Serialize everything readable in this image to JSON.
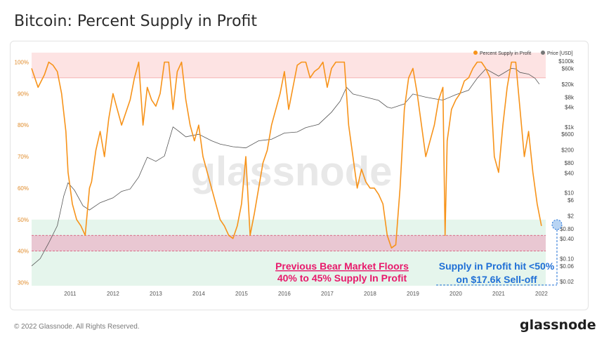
{
  "header": {
    "title": "Bitcoin: Percent Supply in Profit"
  },
  "footer": {
    "copyright": "© 2022 Glassnode. All Rights Reserved.",
    "brand": "glassnode"
  },
  "watermark": "glassnode",
  "annotations": {
    "bear_title": "Previous Bear Market Floors",
    "bear_sub": "40% to 45% Supply In Profit",
    "selloff_title": "Supply in Profit hit <50%",
    "selloff_sub": "on $17.6k Sell-off"
  },
  "colors": {
    "profit": "#f7931a",
    "price": "#555555",
    "annotation_pink": "#e8196b",
    "annotation_blue": "#1f6fd6"
  },
  "chart_data": {
    "type": "line",
    "legend": [
      "Percent Supply in Profit",
      "Price [USD]"
    ],
    "legend_position": "top-right",
    "x_ticks": [
      "2011",
      "2012",
      "2013",
      "2014",
      "2015",
      "2016",
      "2017",
      "2018",
      "2019",
      "2020",
      "2021",
      "2022"
    ],
    "xlim": [
      2010.6,
      2022.6
    ],
    "y_left": {
      "ticks": [
        "30%",
        "40%",
        "50%",
        "60%",
        "70%",
        "80%",
        "90%",
        "100%"
      ],
      "values": [
        30,
        40,
        50,
        60,
        70,
        80,
        90,
        100
      ],
      "ylim": [
        29,
        103
      ]
    },
    "y_right": {
      "scale": "log",
      "ticks": [
        "$100k",
        "$60k",
        "$20k",
        "$8k",
        "$4k",
        "$1k",
        "$600",
        "$200",
        "$80",
        "$40",
        "$10",
        "$6",
        "$2",
        "$0.80",
        "$0.40",
        "$0.10",
        "$0.06",
        "$0.02"
      ],
      "values": [
        100000,
        60000,
        20000,
        8000,
        4000,
        1000,
        600,
        200,
        80,
        40,
        10,
        6,
        2,
        0.8,
        0.4,
        0.1,
        0.06,
        0.02
      ],
      "ylim": [
        0.015,
        180000
      ]
    },
    "zones": [
      {
        "from": 95,
        "to": 103,
        "color": "#fde3e3"
      },
      {
        "from": 29,
        "to": 50,
        "color": "#e5f5ec"
      },
      {
        "from": 40,
        "to": 45,
        "color": "#e9c7d2"
      }
    ],
    "series": [
      {
        "name": "Percent Supply in Profit",
        "axis": "left",
        "x": [
          2010.6,
          2010.75,
          2010.9,
          2011.0,
          2011.1,
          2011.2,
          2011.3,
          2011.4,
          2011.45,
          2011.55,
          2011.65,
          2011.75,
          2011.85,
          2011.95,
          2012.0,
          2012.1,
          2012.2,
          2012.3,
          2012.4,
          2012.5,
          2012.6,
          2012.7,
          2012.8,
          2012.9,
          2013.0,
          2013.1,
          2013.2,
          2013.3,
          2013.4,
          2013.5,
          2013.6,
          2013.7,
          2013.8,
          2013.9,
          2014.0,
          2014.1,
          2014.2,
          2014.3,
          2014.4,
          2014.5,
          2014.6,
          2014.7,
          2014.8,
          2014.9,
          2015.0,
          2015.1,
          2015.2,
          2015.3,
          2015.4,
          2015.5,
          2015.6,
          2015.7,
          2015.8,
          2015.9,
          2016.0,
          2016.1,
          2016.2,
          2016.3,
          2016.4,
          2016.5,
          2016.6,
          2016.7,
          2016.8,
          2016.9,
          2017.0,
          2017.1,
          2017.2,
          2017.3,
          2017.4,
          2017.5,
          2017.6,
          2017.7,
          2017.8,
          2017.9,
          2018.0,
          2018.1,
          2018.2,
          2018.3,
          2018.4,
          2018.5,
          2018.6,
          2018.7,
          2018.8,
          2018.9,
          2019.0,
          2019.1,
          2019.2,
          2019.3,
          2019.4,
          2019.5,
          2019.6,
          2019.7,
          2019.8,
          2019.9,
          2020.0,
          2020.1,
          2020.2,
          2020.25,
          2020.3,
          2020.4,
          2020.5,
          2020.6,
          2020.7,
          2020.8,
          2020.9,
          2021.0,
          2021.1,
          2021.2,
          2021.3,
          2021.4,
          2021.5,
          2021.6,
          2021.7,
          2021.8,
          2021.9,
          2022.0,
          2022.1,
          2022.2,
          2022.3,
          2022.4,
          2022.5
        ],
        "y": [
          98,
          92,
          96,
          100,
          99,
          97,
          90,
          78,
          65,
          55,
          50,
          48,
          45,
          60,
          62,
          72,
          78,
          70,
          82,
          90,
          85,
          80,
          84,
          88,
          95,
          100,
          80,
          92,
          88,
          86,
          90,
          100,
          100,
          85,
          97,
          100,
          88,
          80,
          75,
          80,
          70,
          65,
          60,
          55,
          50,
          48,
          45,
          44,
          48,
          55,
          70,
          45,
          52,
          60,
          68,
          72,
          80,
          85,
          90,
          97,
          85,
          92,
          99,
          100,
          100,
          95,
          97,
          98,
          100,
          92,
          98,
          100,
          100,
          100,
          80,
          70,
          60,
          66,
          62,
          60,
          60,
          58,
          55,
          45,
          41,
          42,
          60,
          85,
          95,
          98,
          90,
          80,
          70,
          75,
          80,
          88,
          92,
          45,
          75,
          85,
          88,
          90,
          94,
          95,
          98,
          100,
          100,
          98,
          95,
          70,
          65,
          80,
          92,
          100,
          100,
          85,
          70,
          78,
          65,
          55,
          48
        ]
      },
      {
        "name": "Price [USD]",
        "axis": "right",
        "x": [
          2010.6,
          2010.8,
          2011.0,
          2011.2,
          2011.35,
          2011.45,
          2011.6,
          2011.8,
          2011.95,
          2012.2,
          2012.5,
          2012.7,
          2012.9,
          2013.1,
          2013.3,
          2013.5,
          2013.7,
          2013.9,
          2014.0,
          2014.2,
          2014.5,
          2014.8,
          2015.0,
          2015.3,
          2015.6,
          2015.9,
          2016.2,
          2016.5,
          2016.8,
          2017.0,
          2017.3,
          2017.6,
          2017.8,
          2017.95,
          2018.1,
          2018.4,
          2018.7,
          2018.9,
          2019.0,
          2019.3,
          2019.5,
          2019.8,
          2020.0,
          2020.2,
          2020.5,
          2020.8,
          2021.0,
          2021.2,
          2021.5,
          2021.8,
          2021.9,
          2022.0,
          2022.2,
          2022.35,
          2022.45
        ],
        "y": [
          0.06,
          0.1,
          0.3,
          1,
          8,
          20,
          12,
          4,
          3,
          5,
          7,
          11,
          13,
          30,
          120,
          90,
          130,
          1000,
          800,
          500,
          600,
          380,
          300,
          250,
          230,
          380,
          420,
          650,
          700,
          950,
          1200,
          2800,
          6000,
          16000,
          10000,
          8000,
          6400,
          4000,
          3700,
          5000,
          10000,
          8000,
          7200,
          6500,
          9500,
          13000,
          30000,
          58000,
          35000,
          60000,
          58000,
          45000,
          40000,
          30000,
          20000
        ]
      }
    ]
  }
}
